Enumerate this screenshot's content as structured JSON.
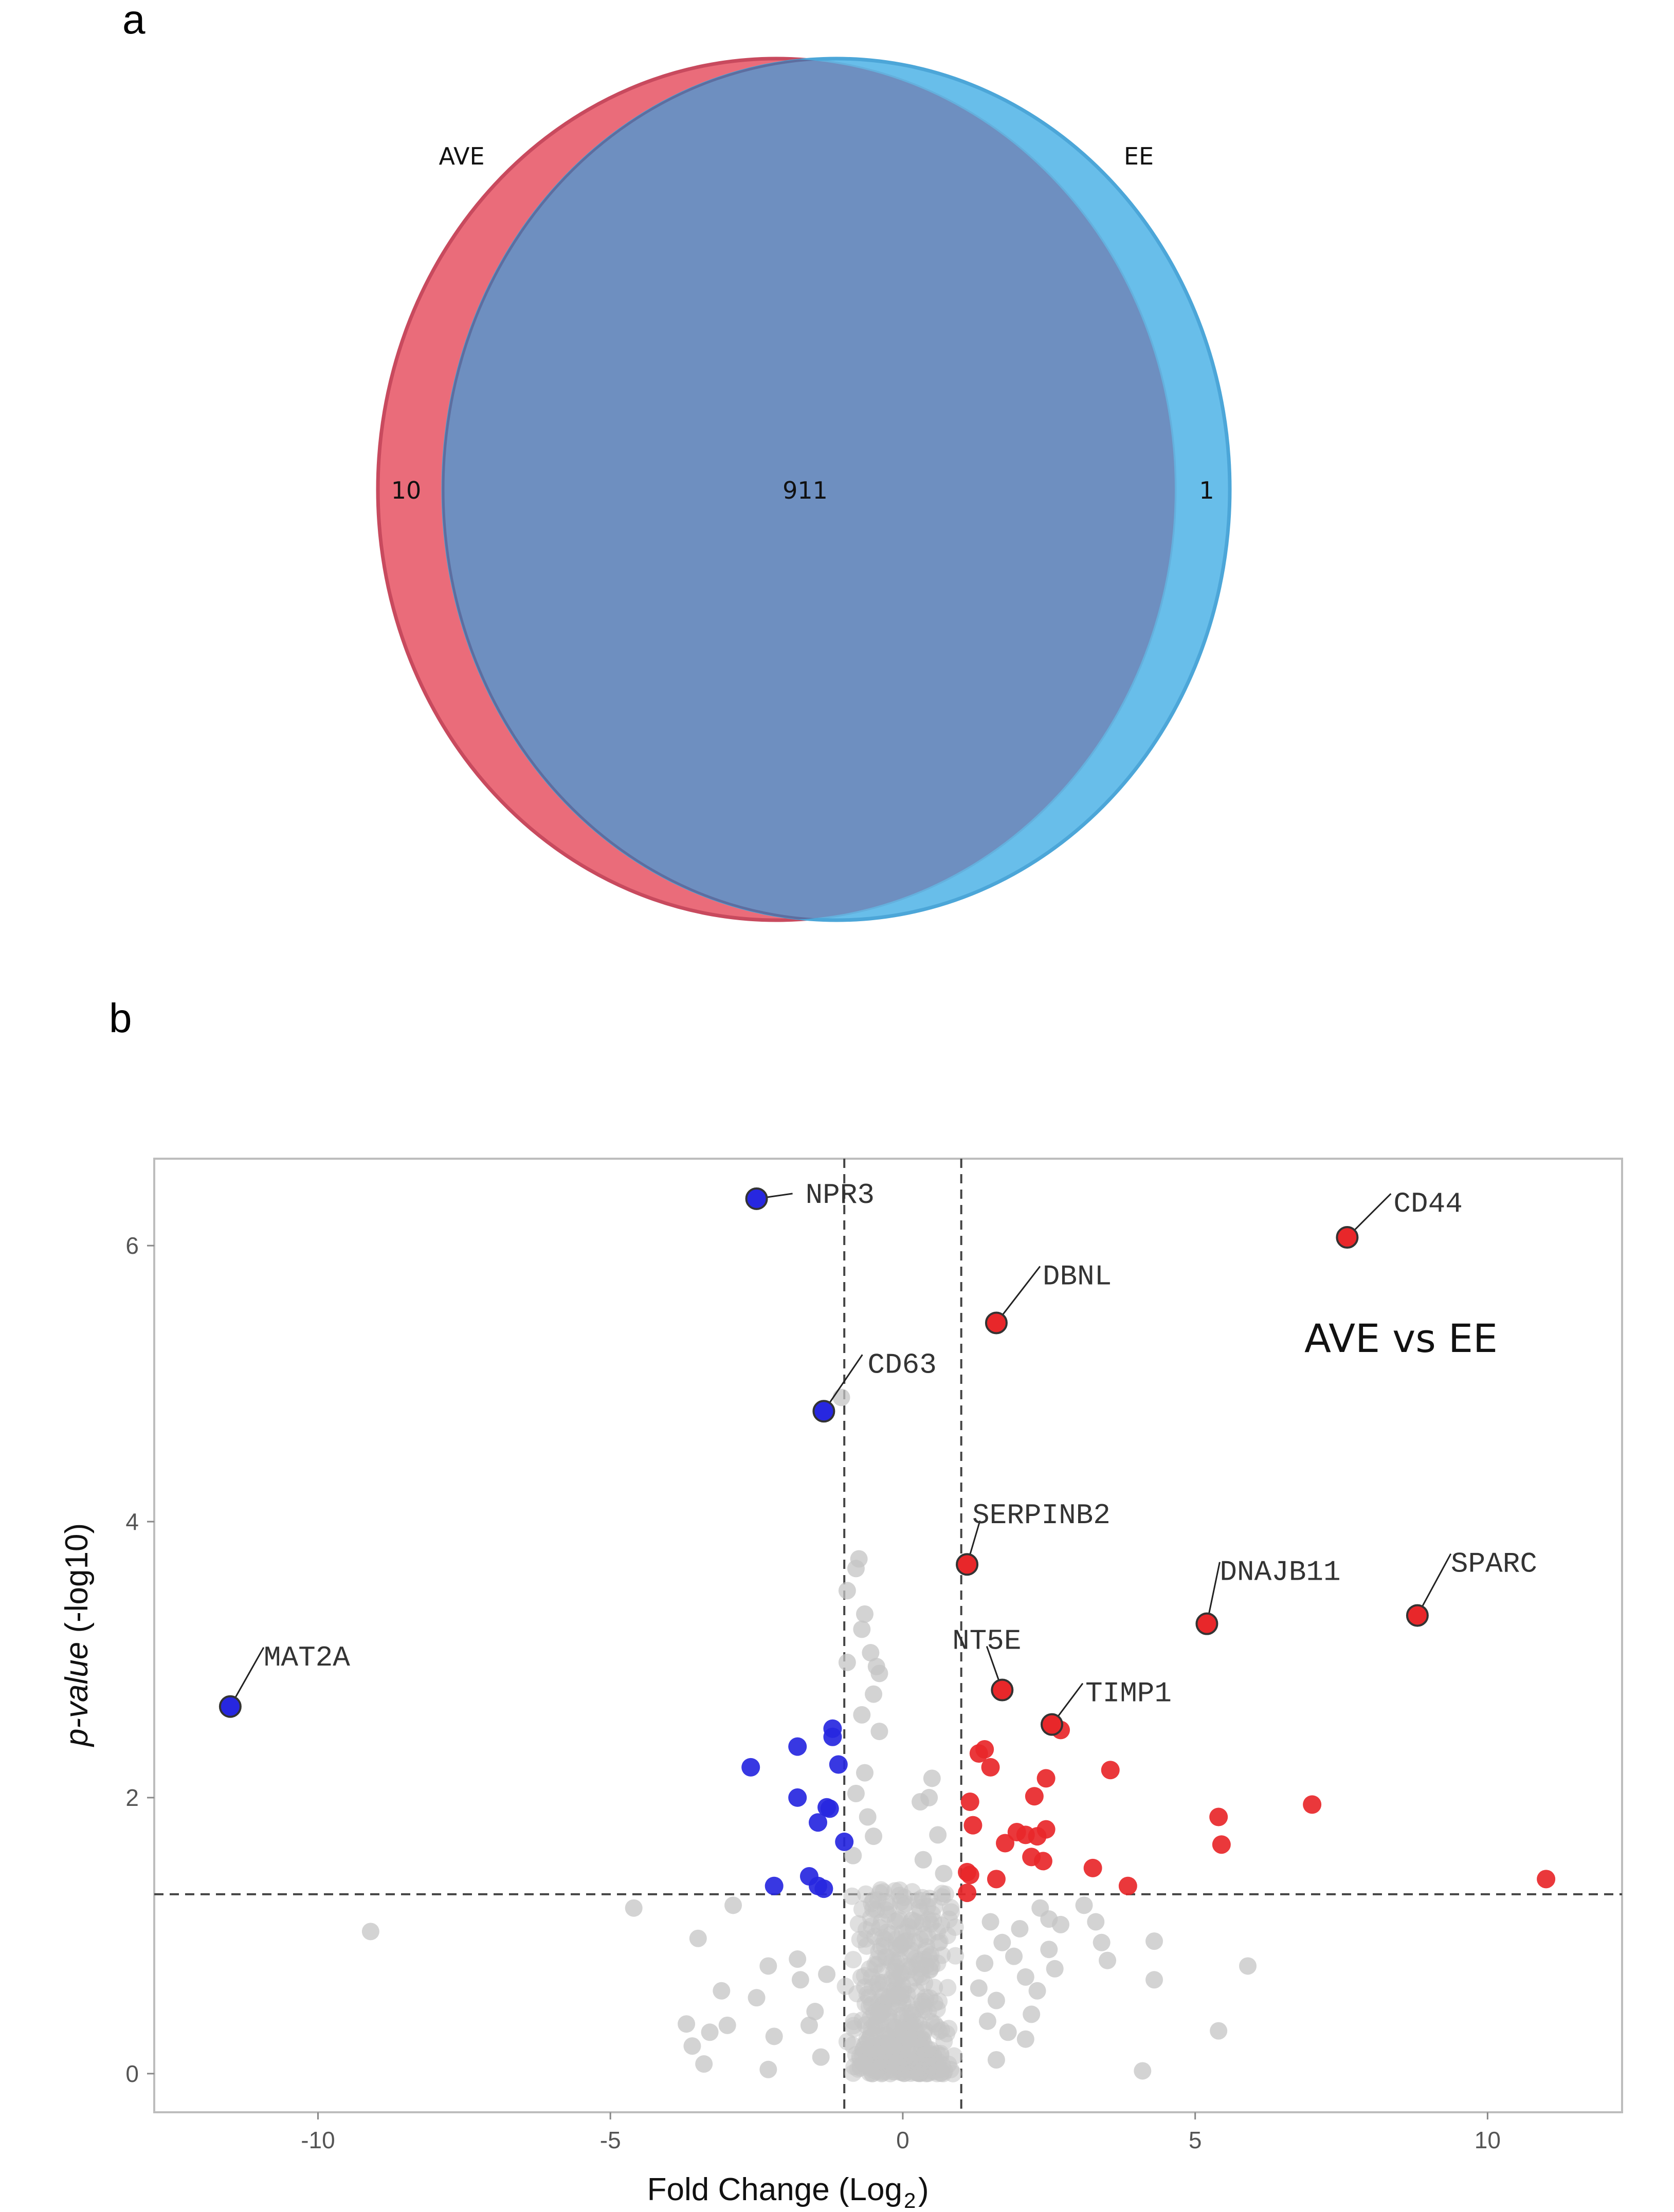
{
  "panels": {
    "a": "a",
    "b": "b"
  },
  "chart_data": [
    {
      "type": "venn",
      "sets": [
        {
          "name": "AVE",
          "color": "#e8606f",
          "unique": "10"
        },
        {
          "name": "EE",
          "color": "#5bb8e8",
          "unique": "1"
        }
      ],
      "intersection": "911",
      "intersection_color": "#6e8fc0"
    },
    {
      "type": "scatter",
      "title": "AVE vs EE",
      "xlabel": "Fold Change (Log",
      "xlabel_sub": "2",
      "xlabel_close": ")",
      "ylabel_italic": "p-value",
      "ylabel_rest": " (-log10)",
      "xlim": [
        -12.8,
        12.3
      ],
      "ylim": [
        -0.28,
        6.63
      ],
      "xticks": [
        -10,
        -5,
        0,
        5,
        10
      ],
      "yticks": [
        0,
        2,
        4,
        6
      ],
      "vlines": [
        -1,
        1
      ],
      "hline": 1.3,
      "colors": {
        "up": "#e8272a",
        "down": "#2727e0",
        "ns": "#c4c4c4"
      },
      "labeled": [
        {
          "gene": "NPR3",
          "x": -2.5,
          "y": 6.34,
          "group": "down"
        },
        {
          "gene": "CD44",
          "x": 7.6,
          "y": 6.06,
          "group": "up"
        },
        {
          "gene": "DBNL",
          "x": 1.6,
          "y": 5.44,
          "group": "up"
        },
        {
          "gene": "CD63",
          "x": -1.35,
          "y": 4.8,
          "group": "down"
        },
        {
          "gene": "SERPINB2",
          "x": 1.1,
          "y": 3.69,
          "group": "up"
        },
        {
          "gene": "DNAJB11",
          "x": 5.2,
          "y": 3.26,
          "group": "up"
        },
        {
          "gene": "SPARC",
          "x": 8.8,
          "y": 3.32,
          "group": "up"
        },
        {
          "gene": "MAT2A",
          "x": -11.5,
          "y": 2.66,
          "group": "down"
        },
        {
          "gene": "NT5E",
          "x": 1.7,
          "y": 2.78,
          "group": "up"
        },
        {
          "gene": "TIMP1",
          "x": 2.55,
          "y": 2.53,
          "group": "up"
        }
      ],
      "down_points": [
        [
          -1.2,
          2.5
        ],
        [
          -1.2,
          2.44
        ],
        [
          -1.1,
          2.24
        ],
        [
          -1.8,
          2.37
        ],
        [
          -2.6,
          2.22
        ],
        [
          -1.8,
          2.0
        ],
        [
          -1.3,
          1.93
        ],
        [
          -1.25,
          1.92
        ],
        [
          -1.45,
          1.82
        ],
        [
          -1.0,
          1.68
        ],
        [
          -1.6,
          1.43
        ],
        [
          -1.45,
          1.36
        ],
        [
          -1.35,
          1.34
        ],
        [
          -2.2,
          1.36
        ]
      ],
      "up_points": [
        [
          1.3,
          2.32
        ],
        [
          1.4,
          2.35
        ],
        [
          1.5,
          2.22
        ],
        [
          1.15,
          1.97
        ],
        [
          1.2,
          1.8
        ],
        [
          2.25,
          2.01
        ],
        [
          2.45,
          2.14
        ],
        [
          3.55,
          2.2
        ],
        [
          7.0,
          1.95
        ],
        [
          5.4,
          1.86
        ],
        [
          5.45,
          1.66
        ],
        [
          1.75,
          1.67
        ],
        [
          1.95,
          1.75
        ],
        [
          2.1,
          1.73
        ],
        [
          2.3,
          1.72
        ],
        [
          2.45,
          1.77
        ],
        [
          2.2,
          1.57
        ],
        [
          2.4,
          1.54
        ],
        [
          3.25,
          1.49
        ],
        [
          3.85,
          1.36
        ],
        [
          1.1,
          1.46
        ],
        [
          1.15,
          1.44
        ],
        [
          1.1,
          1.31
        ],
        [
          1.6,
          1.41
        ],
        [
          11.0,
          1.41
        ],
        [
          2.7,
          2.49
        ]
      ],
      "ns_points": [
        [
          -9.1,
          1.03
        ],
        [
          -4.6,
          1.2
        ],
        [
          -3.5,
          0.98
        ],
        [
          -2.9,
          1.22
        ],
        [
          -3.3,
          0.3
        ],
        [
          -3.1,
          0.6
        ],
        [
          -3.0,
          0.35
        ],
        [
          -2.5,
          0.55
        ],
        [
          -2.3,
          0.78
        ],
        [
          -2.2,
          0.27
        ],
        [
          -3.6,
          0.2
        ],
        [
          -3.7,
          0.36
        ],
        [
          -3.4,
          0.07
        ],
        [
          -2.3,
          0.03
        ],
        [
          -1.8,
          0.83
        ],
        [
          -1.75,
          0.68
        ],
        [
          -1.6,
          0.35
        ],
        [
          -1.5,
          0.45
        ],
        [
          -1.4,
          0.12
        ],
        [
          -1.3,
          0.72
        ],
        [
          -0.75,
          3.73
        ],
        [
          -0.8,
          3.66
        ],
        [
          -0.95,
          3.5
        ],
        [
          -0.65,
          3.33
        ],
        [
          -0.7,
          3.22
        ],
        [
          -0.55,
          3.05
        ],
        [
          -0.45,
          2.95
        ],
        [
          -0.4,
          2.9
        ],
        [
          -0.5,
          2.75
        ],
        [
          -0.7,
          2.6
        ],
        [
          -0.65,
          2.18
        ],
        [
          -0.8,
          2.03
        ],
        [
          -0.6,
          1.86
        ],
        [
          -0.5,
          1.72
        ],
        [
          -0.85,
          1.58
        ],
        [
          0.5,
          2.14
        ],
        [
          0.45,
          2.0
        ],
        [
          0.6,
          1.73
        ],
        [
          0.35,
          1.55
        ],
        [
          0.7,
          1.45
        ],
        [
          -1.05,
          4.9
        ],
        [
          -0.95,
          2.98
        ],
        [
          -0.4,
          2.48
        ],
        [
          0.3,
          1.97
        ],
        [
          1.5,
          1.1
        ],
        [
          1.7,
          0.95
        ],
        [
          1.9,
          0.85
        ],
        [
          2.0,
          1.05
        ],
        [
          2.1,
          0.7
        ],
        [
          2.3,
          0.6
        ],
        [
          2.5,
          1.12
        ],
        [
          2.5,
          0.9
        ],
        [
          2.6,
          0.76
        ],
        [
          2.2,
          0.43
        ],
        [
          2.1,
          0.25
        ],
        [
          1.8,
          0.3
        ],
        [
          3.1,
          1.22
        ],
        [
          3.3,
          1.1
        ],
        [
          3.4,
          0.95
        ],
        [
          3.5,
          0.82
        ],
        [
          4.3,
          0.96
        ],
        [
          4.3,
          0.68
        ],
        [
          5.9,
          0.78
        ],
        [
          5.4,
          0.31
        ],
        [
          4.1,
          0.02
        ],
        [
          1.6,
          0.53
        ],
        [
          1.45,
          0.38
        ],
        [
          1.3,
          0.62
        ],
        [
          1.4,
          0.8
        ],
        [
          1.6,
          0.1
        ],
        [
          2.35,
          1.2
        ],
        [
          2.7,
          1.08
        ]
      ]
    }
  ]
}
